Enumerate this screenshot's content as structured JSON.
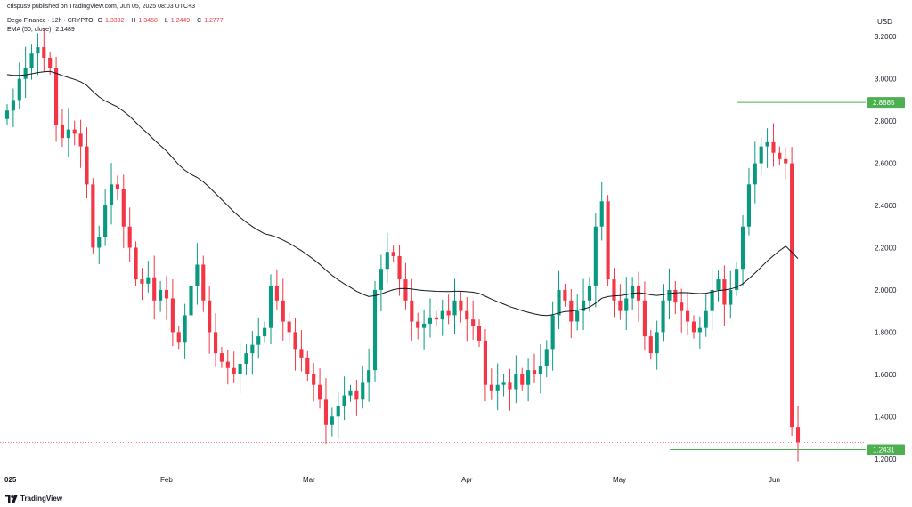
{
  "publisher_line": "crispus9 published on TradingView.com, Jun 05, 2025 08:03 UTC+3",
  "legend": {
    "symbol": "Dego Finance · 12h · CRYPTO",
    "open_label": "O",
    "open": "1.3332",
    "high_label": "H",
    "high": "1.3458",
    "low_label": "L",
    "low": "1.2449",
    "close_label": "C",
    "close": "1.2777",
    "ema_label": "EMA (50, close)",
    "ema_value": "2.1489"
  },
  "brand": "TradingView",
  "colors": {
    "up": "#089981",
    "down": "#f23645",
    "ema": "#131722",
    "marker": "#4caf50",
    "last_price_line": "#f23645"
  },
  "chart_data": {
    "type": "candlestick",
    "currency_label": "USD",
    "y_ticks": [
      "3.2000",
      "3.0000",
      "2.8000",
      "2.6000",
      "2.4000",
      "2.2000",
      "2.0000",
      "1.8000",
      "1.6000",
      "1.4000",
      "1.2000"
    ],
    "ylim": [
      1.14,
      3.34
    ],
    "x_ticks": [
      "025",
      "Feb",
      "Mar",
      "Apr",
      "May",
      "Jun"
    ],
    "markers": [
      {
        "label": "2.8885",
        "value": 2.8885
      },
      {
        "label": "1.2431",
        "value": 1.2431
      }
    ],
    "last_price": 1.2777,
    "closes": [
      2.85,
      2.9,
      3.0,
      3.05,
      3.12,
      3.15,
      3.1,
      3.05,
      2.78,
      2.72,
      2.76,
      2.74,
      2.68,
      2.5,
      2.2,
      2.25,
      2.4,
      2.5,
      2.48,
      2.3,
      2.2,
      2.05,
      2.03,
      2.06,
      1.95,
      2.0,
      1.96,
      1.8,
      1.75,
      1.88,
      2.02,
      2.12,
      1.95,
      1.8,
      1.7,
      1.66,
      1.63,
      1.6,
      1.65,
      1.7,
      1.74,
      1.78,
      1.82,
      2.02,
      1.95,
      1.85,
      1.8,
      1.72,
      1.68,
      1.6,
      1.55,
      1.48,
      1.36,
      1.4,
      1.45,
      1.5,
      1.52,
      1.48,
      1.56,
      1.62,
      2.0,
      2.1,
      2.18,
      2.16,
      2.05,
      1.95,
      1.85,
      1.82,
      1.84,
      1.87,
      1.86,
      1.9,
      1.88,
      1.95,
      1.9,
      1.86,
      1.83,
      1.76,
      1.55,
      1.52,
      1.55,
      1.56,
      1.53,
      1.6,
      1.55,
      1.62,
      1.6,
      1.64,
      1.72,
      1.88,
      2.0,
      1.95,
      1.85,
      1.9,
      1.95,
      2.02,
      2.3,
      2.42,
      2.05,
      1.95,
      1.9,
      1.96,
      2.02,
      1.95,
      1.78,
      1.7,
      1.8,
      1.95,
      2.0,
      1.94,
      1.9,
      1.85,
      1.8,
      1.82,
      1.9,
      2.0,
      2.05,
      1.93,
      2.0,
      2.1,
      2.3,
      2.5,
      2.6,
      2.68,
      2.7,
      2.65,
      2.62,
      2.6,
      1.35,
      1.2777
    ],
    "ema_period": 50,
    "ema_last": 2.1489
  }
}
